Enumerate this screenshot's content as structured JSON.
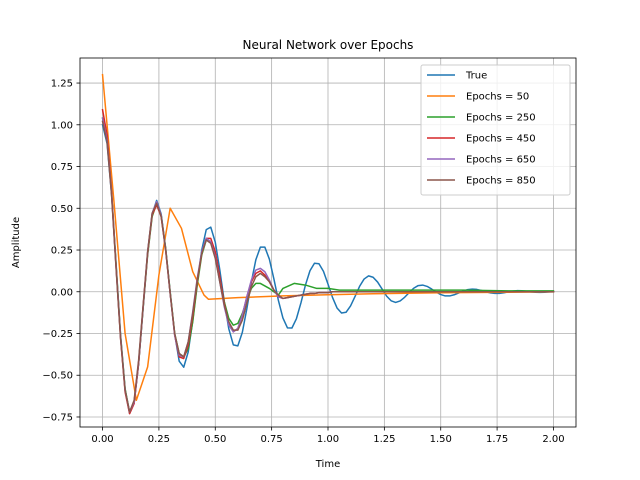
{
  "chart_data": {
    "type": "line",
    "title": "Neural Network over Epochs",
    "xlabel": "Time",
    "ylabel": "Amplitude",
    "xlim": [
      -0.1,
      2.1
    ],
    "ylim": [
      -0.81,
      1.4
    ],
    "xticks": [
      0.0,
      0.25,
      0.5,
      0.75,
      1.0,
      1.25,
      1.5,
      1.75,
      2.0
    ],
    "xtick_labels": [
      "0.00",
      "0.25",
      "0.50",
      "0.75",
      "1.00",
      "1.25",
      "1.50",
      "1.75",
      "2.00"
    ],
    "yticks": [
      -0.75,
      -0.5,
      -0.25,
      0.0,
      0.25,
      0.5,
      0.75,
      1.0,
      1.25
    ],
    "ytick_labels": [
      "−0.75",
      "−0.50",
      "−0.25",
      "0.00",
      "0.25",
      "0.50",
      "0.75",
      "1.00",
      "1.25"
    ],
    "grid": true,
    "legend_position": "upper right",
    "series": [
      {
        "name": "True",
        "color": "#1f77b4",
        "x": [
          0.0,
          0.02,
          0.04,
          0.06,
          0.08,
          0.1,
          0.12,
          0.14,
          0.16,
          0.18,
          0.2,
          0.22,
          0.24,
          0.26,
          0.28,
          0.3,
          0.32,
          0.34,
          0.36,
          0.38,
          0.4,
          0.42,
          0.44,
          0.46,
          0.48,
          0.5,
          0.52,
          0.54,
          0.56,
          0.58,
          0.6,
          0.62,
          0.64,
          0.66,
          0.68,
          0.7,
          0.72,
          0.74,
          0.76,
          0.78,
          0.8,
          0.82,
          0.84,
          0.86,
          0.88,
          0.9,
          0.92,
          0.94,
          0.96,
          0.98,
          1.0,
          1.02,
          1.04,
          1.06,
          1.08,
          1.1,
          1.12,
          1.14,
          1.16,
          1.18,
          1.2,
          1.22,
          1.24,
          1.26,
          1.28,
          1.3,
          1.32,
          1.34,
          1.36,
          1.38,
          1.4,
          1.42,
          1.44,
          1.46,
          1.48,
          1.5,
          1.52,
          1.54,
          1.56,
          1.58,
          1.6,
          1.62,
          1.64,
          1.66,
          1.68,
          1.7,
          1.72,
          1.74,
          1.76,
          1.78,
          1.8,
          1.82,
          1.84,
          1.86,
          1.88,
          1.9,
          1.92,
          1.94,
          1.96,
          1.98,
          2.0
        ],
        "y": [
          1.0,
          0.888,
          0.583,
          0.16,
          -0.265,
          -0.585,
          -0.729,
          -0.667,
          -0.43,
          -0.096,
          0.232,
          0.465,
          0.547,
          0.466,
          0.26,
          -0.005,
          -0.254,
          -0.416,
          -0.452,
          -0.36,
          -0.174,
          0.051,
          0.25,
          0.372,
          0.387,
          0.297,
          0.132,
          -0.059,
          -0.222,
          -0.318,
          -0.324,
          -0.243,
          -0.102,
          0.058,
          0.192,
          0.267,
          0.267,
          0.195,
          0.077,
          -0.052,
          -0.157,
          -0.216,
          -0.217,
          -0.161,
          -0.066,
          0.04,
          0.126,
          0.171,
          0.168,
          0.122,
          0.046,
          -0.034,
          -0.097,
          -0.127,
          -0.123,
          -0.085,
          -0.028,
          0.032,
          0.076,
          0.095,
          0.087,
          0.058,
          0.016,
          -0.026,
          -0.054,
          -0.064,
          -0.055,
          -0.033,
          -0.005,
          0.021,
          0.037,
          0.04,
          0.032,
          0.016,
          -0.002,
          -0.017,
          -0.025,
          -0.025,
          -0.018,
          -0.007,
          0.005,
          0.013,
          0.016,
          0.014,
          0.008,
          0.0,
          -0.007,
          -0.01,
          -0.01,
          -0.006,
          -0.001,
          0.004,
          0.007,
          0.006,
          0.003,
          -0.001,
          -0.003,
          -0.004,
          -0.003,
          -0.001,
          0.0
        ]
      },
      {
        "name": "Epochs = 50",
        "color": "#ff7f0e",
        "x": [
          0.0,
          0.05,
          0.1,
          0.15,
          0.2,
          0.25,
          0.3,
          0.35,
          0.4,
          0.45,
          0.47,
          0.6,
          0.8,
          1.0,
          1.2,
          1.5,
          1.8,
          2.0
        ],
        "y": [
          1.3,
          0.55,
          -0.25,
          -0.65,
          -0.45,
          0.1,
          0.5,
          0.38,
          0.12,
          -0.02,
          -0.045,
          -0.035,
          -0.025,
          -0.018,
          -0.012,
          -0.006,
          -0.003,
          -0.001
        ]
      },
      {
        "name": "Epochs = 250",
        "color": "#2ca02c",
        "x": [
          0.0,
          0.02,
          0.04,
          0.06,
          0.08,
          0.1,
          0.12,
          0.14,
          0.16,
          0.18,
          0.2,
          0.22,
          0.24,
          0.26,
          0.28,
          0.3,
          0.32,
          0.34,
          0.36,
          0.38,
          0.4,
          0.42,
          0.44,
          0.46,
          0.48,
          0.5,
          0.52,
          0.54,
          0.56,
          0.58,
          0.6,
          0.62,
          0.64,
          0.66,
          0.68,
          0.7,
          0.72,
          0.74,
          0.76,
          0.78,
          0.8,
          0.85,
          0.9,
          0.95,
          1.0,
          1.05,
          1.1,
          1.15,
          1.2,
          1.3,
          1.4,
          1.5,
          1.6,
          1.8,
          2.0
        ],
        "y": [
          1.04,
          0.92,
          0.6,
          0.17,
          -0.26,
          -0.58,
          -0.72,
          -0.66,
          -0.43,
          -0.1,
          0.22,
          0.45,
          0.53,
          0.46,
          0.26,
          0.0,
          -0.25,
          -0.37,
          -0.39,
          -0.34,
          -0.18,
          0.04,
          0.22,
          0.31,
          0.3,
          0.22,
          0.08,
          -0.06,
          -0.16,
          -0.2,
          -0.19,
          -0.13,
          -0.05,
          0.02,
          0.05,
          0.05,
          0.035,
          0.02,
          0.0,
          -0.02,
          0.02,
          0.05,
          0.04,
          0.02,
          0.02,
          0.01,
          0.01,
          0.01,
          0.01,
          0.01,
          0.01,
          0.01,
          0.01,
          0.005,
          0.005
        ]
      },
      {
        "name": "Epochs = 450",
        "color": "#d62728",
        "x": [
          0.0,
          0.02,
          0.04,
          0.06,
          0.08,
          0.1,
          0.12,
          0.14,
          0.16,
          0.18,
          0.2,
          0.22,
          0.24,
          0.26,
          0.28,
          0.3,
          0.32,
          0.34,
          0.36,
          0.38,
          0.4,
          0.42,
          0.44,
          0.46,
          0.48,
          0.5,
          0.52,
          0.54,
          0.56,
          0.58,
          0.6,
          0.62,
          0.64,
          0.66,
          0.68,
          0.7,
          0.72,
          0.74,
          0.76,
          0.78,
          0.8,
          0.82,
          0.84,
          0.86,
          0.88,
          0.9,
          0.92,
          0.94,
          0.96,
          0.98,
          1.0,
          1.02,
          1.04,
          1.06,
          1.1,
          1.2,
          1.3,
          1.4,
          1.6,
          1.8,
          2.0
        ],
        "y": [
          1.09,
          0.94,
          0.6,
          0.15,
          -0.28,
          -0.6,
          -0.73,
          -0.67,
          -0.43,
          -0.09,
          0.23,
          0.46,
          0.52,
          0.45,
          0.25,
          -0.01,
          -0.26,
          -0.39,
          -0.4,
          -0.32,
          -0.15,
          0.06,
          0.23,
          0.32,
          0.32,
          0.24,
          0.09,
          -0.07,
          -0.19,
          -0.24,
          -0.22,
          -0.14,
          -0.03,
          0.06,
          0.11,
          0.125,
          0.1,
          0.06,
          0.01,
          -0.03,
          -0.04,
          -0.035,
          -0.03,
          -0.025,
          -0.02,
          -0.015,
          -0.01,
          -0.01,
          -0.005,
          -0.005,
          -0.005,
          0.0,
          0.0,
          0.0,
          0.0,
          0.0,
          0.0,
          0.0,
          0.0,
          0.0,
          0.0
        ]
      },
      {
        "name": "Epochs = 650",
        "color": "#9467bd",
        "x": [
          0.0,
          0.02,
          0.04,
          0.06,
          0.08,
          0.1,
          0.12,
          0.14,
          0.16,
          0.18,
          0.2,
          0.22,
          0.24,
          0.26,
          0.28,
          0.3,
          0.32,
          0.34,
          0.36,
          0.38,
          0.4,
          0.42,
          0.44,
          0.46,
          0.48,
          0.5,
          0.52,
          0.54,
          0.56,
          0.58,
          0.6,
          0.62,
          0.64,
          0.66,
          0.68,
          0.7,
          0.72,
          0.74,
          0.76,
          0.78,
          0.8,
          0.82,
          0.84,
          0.86,
          0.88,
          0.9,
          0.92,
          0.94,
          0.96,
          0.98,
          1.0,
          1.02,
          1.04,
          1.06,
          1.1,
          1.2,
          1.3,
          1.4,
          1.6,
          1.8,
          2.0
        ],
        "y": [
          1.04,
          0.91,
          0.59,
          0.15,
          -0.27,
          -0.59,
          -0.72,
          -0.66,
          -0.42,
          -0.09,
          0.24,
          0.47,
          0.54,
          0.46,
          0.25,
          -0.01,
          -0.26,
          -0.38,
          -0.39,
          -0.3,
          -0.12,
          0.08,
          0.24,
          0.32,
          0.3,
          0.21,
          0.06,
          -0.09,
          -0.2,
          -0.24,
          -0.22,
          -0.14,
          -0.03,
          0.07,
          0.13,
          0.14,
          0.12,
          0.07,
          0.01,
          -0.03,
          -0.04,
          -0.035,
          -0.03,
          -0.025,
          -0.02,
          -0.015,
          -0.01,
          -0.01,
          -0.005,
          -0.005,
          -0.005,
          0.0,
          0.0,
          0.0,
          0.0,
          0.0,
          0.0,
          0.0,
          0.0,
          0.0,
          0.0
        ]
      },
      {
        "name": "Epochs = 850",
        "color": "#8c564b",
        "x": [
          0.0,
          0.02,
          0.04,
          0.06,
          0.08,
          0.1,
          0.12,
          0.14,
          0.16,
          0.18,
          0.2,
          0.22,
          0.24,
          0.26,
          0.28,
          0.3,
          0.32,
          0.34,
          0.36,
          0.38,
          0.4,
          0.42,
          0.44,
          0.46,
          0.48,
          0.5,
          0.52,
          0.54,
          0.56,
          0.58,
          0.6,
          0.62,
          0.64,
          0.66,
          0.68,
          0.7,
          0.72,
          0.74,
          0.76,
          0.78,
          0.8,
          0.82,
          0.84,
          0.86,
          0.88,
          0.9,
          0.92,
          0.94,
          0.96,
          0.98,
          1.0,
          1.02,
          1.04,
          1.06,
          1.1,
          1.2,
          1.3,
          1.4,
          1.6,
          1.8,
          2.0
        ],
        "y": [
          1.02,
          0.9,
          0.58,
          0.14,
          -0.28,
          -0.59,
          -0.72,
          -0.65,
          -0.41,
          -0.08,
          0.24,
          0.47,
          0.53,
          0.45,
          0.25,
          -0.01,
          -0.25,
          -0.37,
          -0.39,
          -0.3,
          -0.13,
          0.07,
          0.23,
          0.31,
          0.29,
          0.2,
          0.06,
          -0.08,
          -0.18,
          -0.23,
          -0.23,
          -0.17,
          -0.07,
          0.03,
          0.09,
          0.11,
          0.09,
          0.06,
          0.01,
          -0.02,
          -0.04,
          -0.035,
          -0.03,
          -0.025,
          -0.02,
          -0.015,
          -0.01,
          -0.01,
          -0.005,
          -0.005,
          -0.005,
          0.0,
          0.0,
          0.0,
          0.0,
          0.0,
          0.0,
          0.0,
          0.0,
          0.0,
          0.0
        ]
      }
    ]
  }
}
